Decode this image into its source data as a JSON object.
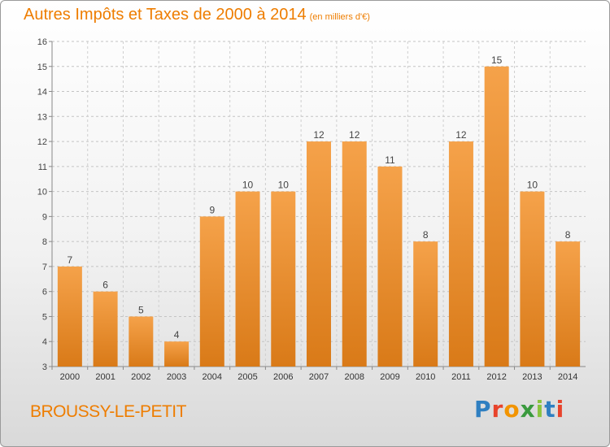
{
  "title": "Autres Impôts et Taxes de 2000 à 2014",
  "subtitle": "(en milliers d'€)",
  "commune": "BROUSSY-LE-PETIT",
  "logo": "Proxiti",
  "colors": {
    "accent": "#ee7d00",
    "bar_top": "#f5a24a",
    "bar_bottom": "#d97a18"
  },
  "chart_data": {
    "type": "bar",
    "title": "Autres Impôts et Taxes de 2000 à 2014",
    "subtitle": "(en milliers d'€)",
    "categories": [
      "2000",
      "2001",
      "2002",
      "2003",
      "2004",
      "2005",
      "2006",
      "2007",
      "2008",
      "2009",
      "2010",
      "2011",
      "2012",
      "2013",
      "2014"
    ],
    "values": [
      7,
      6,
      5,
      4,
      9,
      10,
      10,
      12,
      12,
      11,
      8,
      12,
      15,
      10,
      8
    ],
    "ylim": [
      3,
      16
    ],
    "yticks": [
      3,
      4,
      5,
      6,
      7,
      8,
      9,
      10,
      11,
      12,
      13,
      14,
      15,
      16
    ],
    "grid": true
  }
}
